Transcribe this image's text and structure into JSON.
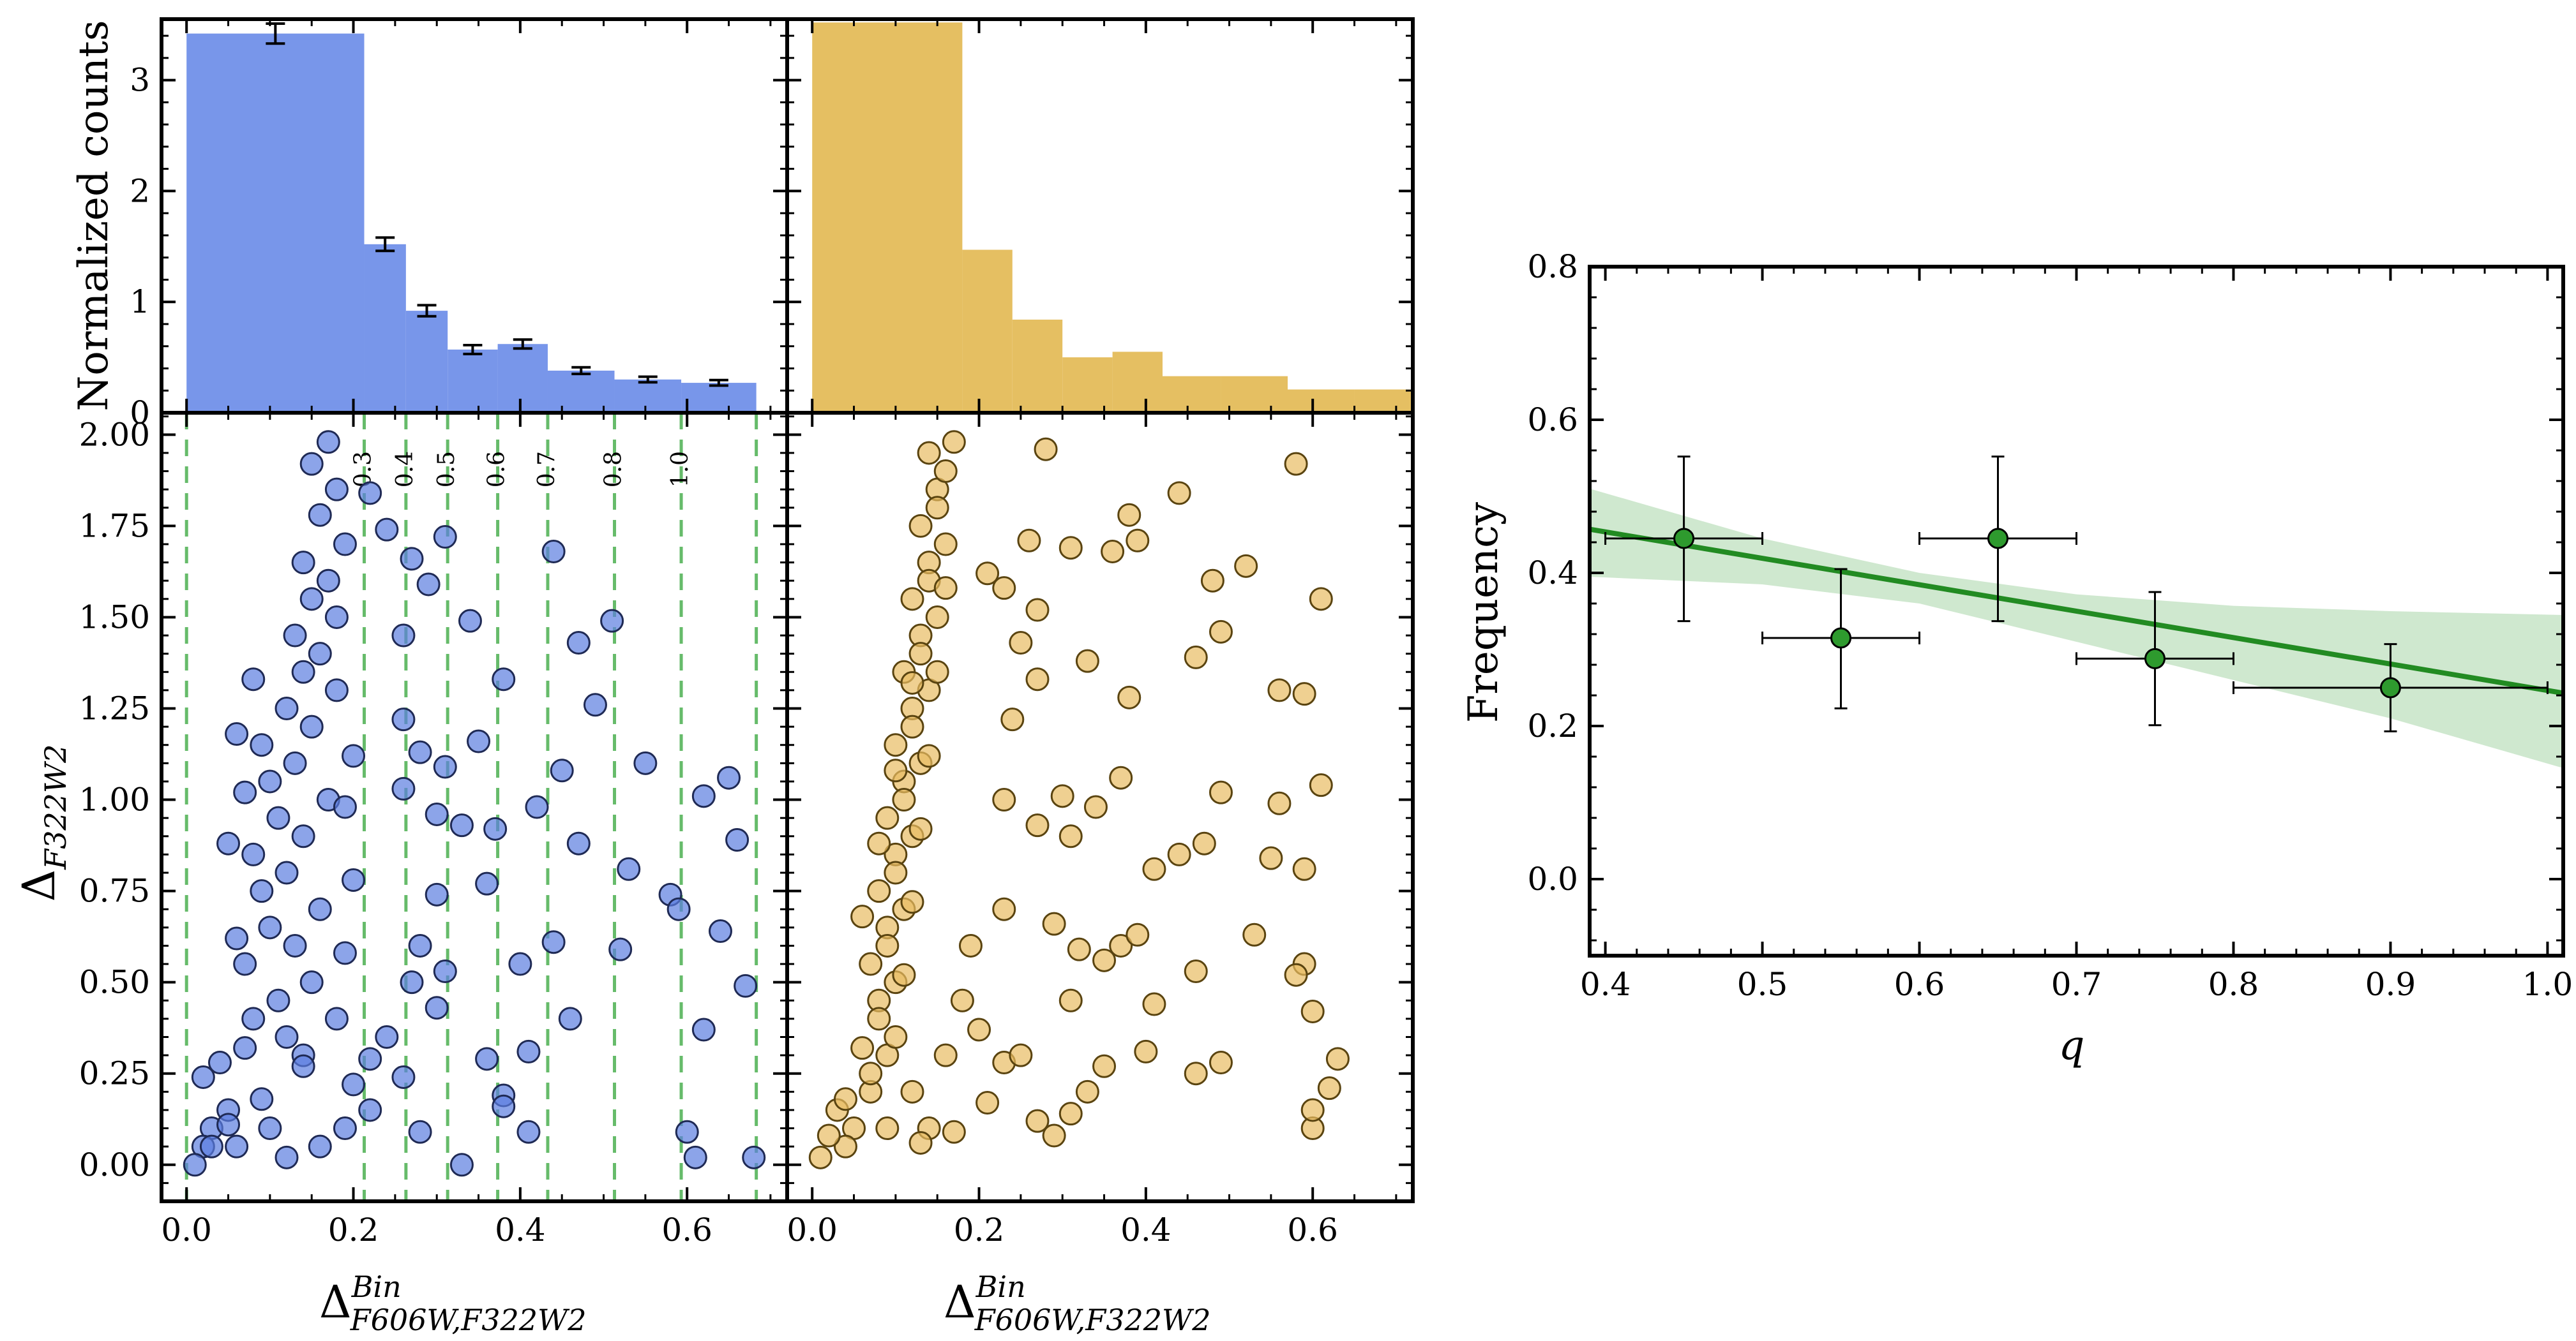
{
  "figure": {
    "palette": {
      "blue_hist": "#7896ea",
      "blue_point": "#5b7ee0",
      "gold_hist": "#e5bf62",
      "gold_point": "#e8bc63",
      "green_line": "#228b22",
      "green_band": "#cfe8cf",
      "green_point": "#2e9a2e",
      "dashed_green": "#66bb6a"
    }
  },
  "chart_data": [
    {
      "id": "hist_left",
      "type": "bar",
      "ylabel": "Normalized counts",
      "xlim": [
        -0.03,
        0.72
      ],
      "ylim": [
        0,
        3.55
      ],
      "yticks": [
        0,
        1,
        2,
        3
      ],
      "ytick_labels": [
        "0",
        "1",
        "2",
        "3"
      ],
      "bin_edges": [
        0.0,
        0.213,
        0.263,
        0.313,
        0.373,
        0.433,
        0.513,
        0.593,
        0.683
      ],
      "values": [
        3.42,
        1.52,
        0.92,
        0.57,
        0.62,
        0.38,
        0.3,
        0.27
      ],
      "errors": [
        0.09,
        0.06,
        0.05,
        0.04,
        0.04,
        0.03,
        0.025,
        0.025
      ]
    },
    {
      "id": "hist_right",
      "type": "bar",
      "xlim": [
        -0.03,
        0.72
      ],
      "ylim": [
        0,
        3.55
      ],
      "bin_edges": [
        0.0,
        0.18,
        0.24,
        0.3,
        0.36,
        0.42,
        0.49,
        0.57,
        0.65,
        0.72
      ],
      "values": [
        3.52,
        1.47,
        0.84,
        0.5,
        0.55,
        0.33,
        0.33,
        0.21,
        0.21
      ]
    },
    {
      "id": "scatter_left",
      "type": "scatter",
      "xlabel": "Δ^{Bin}_{F606W,F322W2}",
      "ylabel": "Δ_{F322W2}",
      "xlim": [
        -0.03,
        0.72
      ],
      "ylim": [
        -0.1,
        2.06
      ],
      "xticks": [
        0,
        0.2,
        0.4,
        0.6
      ],
      "xtick_labels": [
        "0.0",
        "0.2",
        "0.4",
        "0.6"
      ],
      "yticks": [
        0,
        0.25,
        0.5,
        0.75,
        1.0,
        1.25,
        1.5,
        1.75,
        2.0
      ],
      "ytick_labels": [
        "0.00",
        "0.25",
        "0.50",
        "0.75",
        "1.00",
        "1.25",
        "1.50",
        "1.75",
        "2.00"
      ],
      "q_lines": [
        {
          "x": 0.0,
          "label": ""
        },
        {
          "x": 0.213,
          "label": "0.3"
        },
        {
          "x": 0.263,
          "label": "0.4"
        },
        {
          "x": 0.313,
          "label": "0.5"
        },
        {
          "x": 0.373,
          "label": "0.6"
        },
        {
          "x": 0.433,
          "label": "0.7"
        },
        {
          "x": 0.513,
          "label": "0.8"
        },
        {
          "x": 0.593,
          "label": "1.0"
        },
        {
          "x": 0.683,
          "label": ""
        }
      ],
      "core_points": [
        [
          0.09,
          0.18
        ],
        [
          0.1,
          0.1
        ],
        [
          0.06,
          0.05
        ],
        [
          0.14,
          0.3
        ],
        [
          0.12,
          0.35
        ],
        [
          0.08,
          0.4
        ],
        [
          0.11,
          0.45
        ],
        [
          0.15,
          0.5
        ],
        [
          0.07,
          0.55
        ],
        [
          0.13,
          0.6
        ],
        [
          0.1,
          0.65
        ],
        [
          0.16,
          0.7
        ],
        [
          0.09,
          0.75
        ],
        [
          0.12,
          0.8
        ],
        [
          0.08,
          0.85
        ],
        [
          0.14,
          0.9
        ],
        [
          0.11,
          0.95
        ],
        [
          0.17,
          1.0
        ],
        [
          0.1,
          1.05
        ],
        [
          0.13,
          1.1
        ],
        [
          0.09,
          1.15
        ],
        [
          0.15,
          1.2
        ],
        [
          0.12,
          1.25
        ],
        [
          0.18,
          1.3
        ],
        [
          0.14,
          1.35
        ],
        [
          0.16,
          1.4
        ],
        [
          0.13,
          1.45
        ],
        [
          0.18,
          1.5
        ],
        [
          0.15,
          1.55
        ],
        [
          0.17,
          1.6
        ],
        [
          0.14,
          1.65
        ],
        [
          0.19,
          1.7
        ],
        [
          0.16,
          1.78
        ],
        [
          0.18,
          1.85
        ],
        [
          0.15,
          1.92
        ],
        [
          0.17,
          1.98
        ],
        [
          0.05,
          0.15
        ],
        [
          0.04,
          0.28
        ],
        [
          0.06,
          0.62
        ],
        [
          0.05,
          0.88
        ],
        [
          0.07,
          1.02
        ],
        [
          0.06,
          1.18
        ],
        [
          0.08,
          1.33
        ],
        [
          0.19,
          0.1
        ],
        [
          0.2,
          0.22
        ],
        [
          0.18,
          0.4
        ],
        [
          0.19,
          0.58
        ],
        [
          0.2,
          0.78
        ],
        [
          0.19,
          0.98
        ],
        [
          0.2,
          1.12
        ],
        [
          0.12,
          0.02
        ],
        [
          0.16,
          0.05
        ],
        [
          0.03,
          0.1
        ],
        [
          0.02,
          0.05
        ]
      ],
      "points": [
        [
          0.01,
          0.0
        ],
        [
          0.03,
          0.05
        ],
        [
          0.05,
          0.11
        ],
        [
          0.02,
          0.24
        ],
        [
          0.07,
          0.32
        ],
        [
          0.14,
          0.27
        ],
        [
          0.22,
          0.29
        ],
        [
          0.26,
          0.24
        ],
        [
          0.28,
          0.09
        ],
        [
          0.33,
          0.0
        ],
        [
          0.3,
          0.43
        ],
        [
          0.27,
          0.5
        ],
        [
          0.36,
          0.29
        ],
        [
          0.38,
          0.19
        ],
        [
          0.41,
          0.09
        ],
        [
          0.24,
          0.35
        ],
        [
          0.28,
          0.6
        ],
        [
          0.31,
          0.53
        ],
        [
          0.4,
          0.55
        ],
        [
          0.44,
          0.61
        ],
        [
          0.46,
          0.4
        ],
        [
          0.52,
          0.59
        ],
        [
          0.53,
          0.81
        ],
        [
          0.58,
          0.74
        ],
        [
          0.62,
          0.37
        ],
        [
          0.62,
          1.01
        ],
        [
          0.65,
          1.06
        ],
        [
          0.67,
          0.49
        ],
        [
          0.6,
          0.09
        ],
        [
          0.61,
          0.02
        ],
        [
          0.68,
          0.02
        ],
        [
          0.22,
          1.84
        ],
        [
          0.24,
          1.74
        ],
        [
          0.27,
          1.66
        ],
        [
          0.29,
          1.59
        ],
        [
          0.31,
          1.72
        ],
        [
          0.26,
          1.45
        ],
        [
          0.34,
          1.49
        ],
        [
          0.38,
          1.33
        ],
        [
          0.44,
          1.68
        ],
        [
          0.47,
          1.43
        ],
        [
          0.51,
          1.49
        ],
        [
          0.26,
          1.22
        ],
        [
          0.28,
          1.13
        ],
        [
          0.31,
          1.09
        ],
        [
          0.35,
          1.16
        ],
        [
          0.33,
          0.93
        ],
        [
          0.37,
          0.92
        ],
        [
          0.42,
          0.98
        ],
        [
          0.45,
          1.08
        ],
        [
          0.49,
          1.26
        ],
        [
          0.55,
          1.1
        ],
        [
          0.59,
          0.7
        ],
        [
          0.66,
          0.89
        ],
        [
          0.64,
          0.64
        ],
        [
          0.3,
          0.74
        ],
        [
          0.26,
          1.03
        ],
        [
          0.3,
          0.96
        ],
        [
          0.47,
          0.88
        ],
        [
          0.36,
          0.77
        ],
        [
          0.22,
          0.15
        ],
        [
          0.38,
          0.16
        ],
        [
          0.41,
          0.31
        ]
      ]
    },
    {
      "id": "scatter_right",
      "type": "scatter",
      "xlabel": "Δ^{Bin}_{F606W,F322W2}",
      "xlim": [
        -0.03,
        0.72
      ],
      "ylim": [
        -0.1,
        2.06
      ],
      "xticks": [
        0,
        0.2,
        0.4,
        0.6
      ],
      "xtick_labels": [
        "0.0",
        "0.2",
        "0.4",
        "0.6"
      ],
      "core_points": [
        [
          0.05,
          0.1
        ],
        [
          0.07,
          0.2
        ],
        [
          0.06,
          0.32
        ],
        [
          0.08,
          0.45
        ],
        [
          0.07,
          0.55
        ],
        [
          0.09,
          0.65
        ],
        [
          0.08,
          0.75
        ],
        [
          0.1,
          0.85
        ],
        [
          0.09,
          0.95
        ],
        [
          0.11,
          1.05
        ],
        [
          0.1,
          1.15
        ],
        [
          0.12,
          1.25
        ],
        [
          0.11,
          1.35
        ],
        [
          0.13,
          1.45
        ],
        [
          0.12,
          1.55
        ],
        [
          0.14,
          1.65
        ],
        [
          0.13,
          1.75
        ],
        [
          0.15,
          1.85
        ],
        [
          0.14,
          1.95
        ],
        [
          0.16,
          1.9
        ],
        [
          0.15,
          1.8
        ],
        [
          0.16,
          1.7
        ],
        [
          0.14,
          1.6
        ],
        [
          0.15,
          1.5
        ],
        [
          0.13,
          1.4
        ],
        [
          0.14,
          1.3
        ],
        [
          0.12,
          1.2
        ],
        [
          0.13,
          1.1
        ],
        [
          0.11,
          1.0
        ],
        [
          0.12,
          0.9
        ],
        [
          0.1,
          0.8
        ],
        [
          0.11,
          0.7
        ],
        [
          0.09,
          0.6
        ],
        [
          0.1,
          0.5
        ],
        [
          0.08,
          0.4
        ],
        [
          0.09,
          0.3
        ],
        [
          0.07,
          0.25
        ],
        [
          0.04,
          0.05
        ],
        [
          0.03,
          0.15
        ],
        [
          0.06,
          0.68
        ],
        [
          0.08,
          0.88
        ],
        [
          0.1,
          1.08
        ],
        [
          0.12,
          1.32
        ],
        [
          0.17,
          1.98
        ],
        [
          0.16,
          1.58
        ],
        [
          0.15,
          1.35
        ],
        [
          0.14,
          1.12
        ],
        [
          0.13,
          0.92
        ],
        [
          0.12,
          0.72
        ],
        [
          0.11,
          0.52
        ],
        [
          0.1,
          0.35
        ],
        [
          0.12,
          0.2
        ],
        [
          0.14,
          0.1
        ],
        [
          0.16,
          0.3
        ],
        [
          0.18,
          0.45
        ],
        [
          0.19,
          0.6
        ]
      ],
      "points": [
        [
          0.01,
          0.02
        ],
        [
          0.02,
          0.08
        ],
        [
          0.04,
          0.18
        ],
        [
          0.09,
          0.1
        ],
        [
          0.13,
          0.06
        ],
        [
          0.17,
          0.09
        ],
        [
          0.21,
          0.17
        ],
        [
          0.23,
          0.28
        ],
        [
          0.27,
          0.12
        ],
        [
          0.29,
          0.08
        ],
        [
          0.31,
          0.14
        ],
        [
          0.33,
          0.2
        ],
        [
          0.35,
          0.27
        ],
        [
          0.4,
          0.31
        ],
        [
          0.46,
          0.25
        ],
        [
          0.49,
          0.28
        ],
        [
          0.6,
          0.1
        ],
        [
          0.62,
          0.21
        ],
        [
          0.6,
          0.15
        ],
        [
          0.63,
          0.29
        ],
        [
          0.2,
          0.37
        ],
        [
          0.25,
          0.3
        ],
        [
          0.31,
          0.45
        ],
        [
          0.35,
          0.56
        ],
        [
          0.41,
          0.44
        ],
        [
          0.46,
          0.53
        ],
        [
          0.53,
          0.63
        ],
        [
          0.59,
          0.55
        ],
        [
          0.6,
          0.42
        ],
        [
          0.58,
          0.52
        ],
        [
          0.32,
          0.59
        ],
        [
          0.37,
          0.6
        ],
        [
          0.39,
          0.63
        ],
        [
          0.23,
          0.7
        ],
        [
          0.29,
          0.66
        ],
        [
          0.31,
          0.9
        ],
        [
          0.34,
          0.98
        ],
        [
          0.41,
          0.81
        ],
        [
          0.44,
          0.85
        ],
        [
          0.47,
          0.88
        ],
        [
          0.49,
          1.02
        ],
        [
          0.56,
          0.99
        ],
        [
          0.59,
          0.81
        ],
        [
          0.61,
          1.04
        ],
        [
          0.55,
          0.84
        ],
        [
          0.23,
          1.0
        ],
        [
          0.27,
          0.93
        ],
        [
          0.3,
          1.01
        ],
        [
          0.37,
          1.06
        ],
        [
          0.24,
          1.22
        ],
        [
          0.27,
          1.33
        ],
        [
          0.33,
          1.38
        ],
        [
          0.38,
          1.28
        ],
        [
          0.46,
          1.39
        ],
        [
          0.49,
          1.46
        ],
        [
          0.56,
          1.3
        ],
        [
          0.59,
          1.29
        ],
        [
          0.61,
          1.55
        ],
        [
          0.21,
          1.62
        ],
        [
          0.23,
          1.58
        ],
        [
          0.26,
          1.71
        ],
        [
          0.31,
          1.69
        ],
        [
          0.36,
          1.68
        ],
        [
          0.39,
          1.71
        ],
        [
          0.38,
          1.78
        ],
        [
          0.44,
          1.84
        ],
        [
          0.48,
          1.6
        ],
        [
          0.52,
          1.64
        ],
        [
          0.58,
          1.92
        ],
        [
          0.28,
          1.96
        ],
        [
          0.27,
          1.52
        ],
        [
          0.25,
          1.43
        ]
      ]
    },
    {
      "id": "frequency_q",
      "type": "line",
      "xlabel": "q",
      "ylabel": "Frequency",
      "xlim": [
        0.39,
        1.01
      ],
      "ylim": [
        -0.1,
        0.8
      ],
      "xticks": [
        0.4,
        0.5,
        0.6,
        0.7,
        0.8,
        0.9,
        1.0
      ],
      "xtick_labels": [
        "0.4",
        "0.5",
        "0.6",
        "0.7",
        "0.8",
        "0.9",
        "1.0"
      ],
      "yticks": [
        0.0,
        0.2,
        0.4,
        0.6,
        0.8
      ],
      "ytick_labels": [
        "0.0",
        "0.2",
        "0.4",
        "0.6",
        "0.8"
      ],
      "points": [
        {
          "x": 0.45,
          "y": 0.445,
          "xerr": 0.05,
          "yerr_low": 0.108,
          "yerr_high": 0.107
        },
        {
          "x": 0.55,
          "y": 0.315,
          "xerr": 0.05,
          "yerr_low": 0.092,
          "yerr_high": 0.09
        },
        {
          "x": 0.65,
          "y": 0.445,
          "xerr": 0.05,
          "yerr_low": 0.108,
          "yerr_high": 0.107
        },
        {
          "x": 0.75,
          "y": 0.288,
          "xerr": 0.05,
          "yerr_low": 0.087,
          "yerr_high": 0.087
        },
        {
          "x": 0.9,
          "y": 0.25,
          "xerr": 0.1,
          "yerr_low": 0.057,
          "yerr_high": 0.057
        }
      ],
      "fit_line": {
        "x": [
          0.39,
          1.01
        ],
        "y": [
          0.457,
          0.243
        ]
      },
      "band": {
        "x": [
          0.39,
          0.5,
          0.6,
          0.7,
          0.8,
          0.9,
          1.01
        ],
        "upper": [
          0.51,
          0.445,
          0.4,
          0.372,
          0.357,
          0.35,
          0.345
        ],
        "lower": [
          0.395,
          0.385,
          0.36,
          0.31,
          0.26,
          0.21,
          0.145
        ]
      }
    }
  ]
}
